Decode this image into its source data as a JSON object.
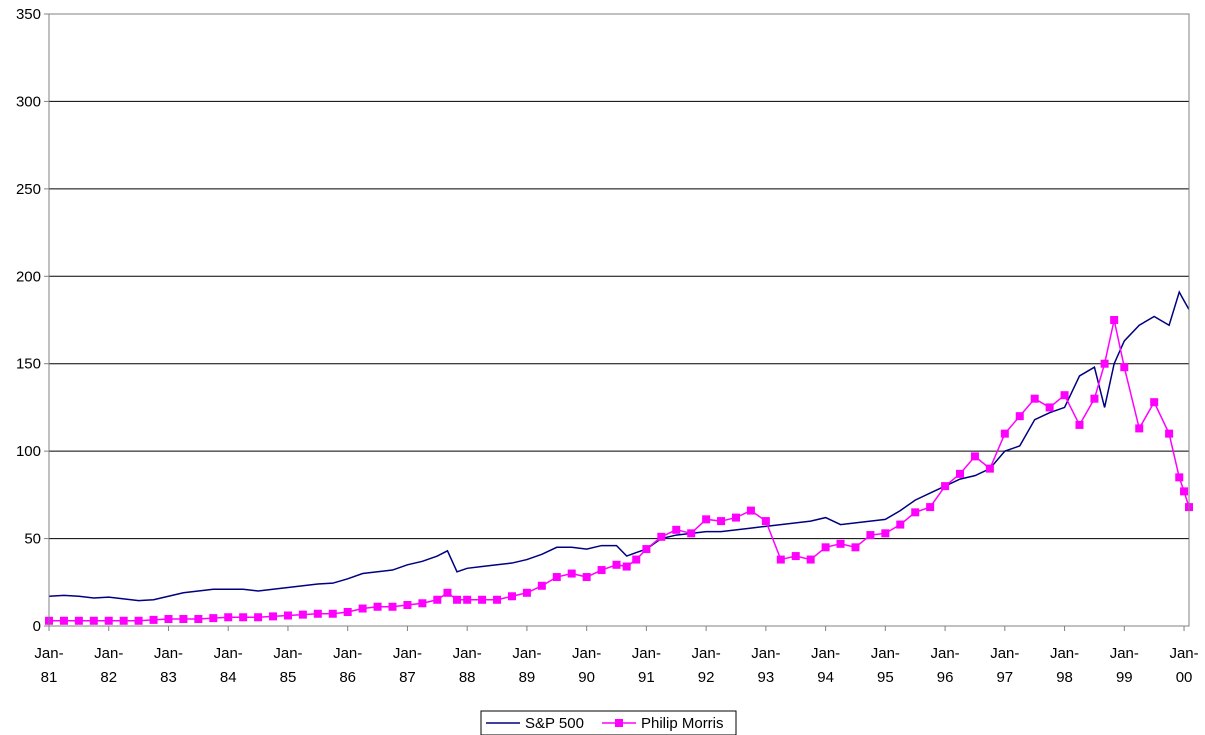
{
  "chart_data": {
    "type": "line",
    "title": "",
    "xlabel": "",
    "ylabel": "",
    "ylim": [
      0,
      350
    ],
    "yticks": [
      0,
      50,
      100,
      150,
      200,
      250,
      300,
      350
    ],
    "xlim": [
      1981.0,
      2000.083
    ],
    "x_tick_labels": [
      {
        "x": 1981,
        "line1": "Jan-",
        "line2": "81"
      },
      {
        "x": 1982,
        "line1": "Jan-",
        "line2": "82"
      },
      {
        "x": 1983,
        "line1": "Jan-",
        "line2": "83"
      },
      {
        "x": 1984,
        "line1": "Jan-",
        "line2": "84"
      },
      {
        "x": 1985,
        "line1": "Jan-",
        "line2": "85"
      },
      {
        "x": 1986,
        "line1": "Jan-",
        "line2": "86"
      },
      {
        "x": 1987,
        "line1": "Jan-",
        "line2": "87"
      },
      {
        "x": 1988,
        "line1": "Jan-",
        "line2": "88"
      },
      {
        "x": 1989,
        "line1": "Jan-",
        "line2": "89"
      },
      {
        "x": 1990,
        "line1": "Jan-",
        "line2": "90"
      },
      {
        "x": 1991,
        "line1": "Jan-",
        "line2": "91"
      },
      {
        "x": 1992,
        "line1": "Jan-",
        "line2": "92"
      },
      {
        "x": 1993,
        "line1": "Jan-",
        "line2": "93"
      },
      {
        "x": 1994,
        "line1": "Jan-",
        "line2": "94"
      },
      {
        "x": 1995,
        "line1": "Jan-",
        "line2": "95"
      },
      {
        "x": 1996,
        "line1": "Jan-",
        "line2": "96"
      },
      {
        "x": 1997,
        "line1": "Jan-",
        "line2": "97"
      },
      {
        "x": 1998,
        "line1": "Jan-",
        "line2": "98"
      },
      {
        "x": 1999,
        "line1": "Jan-",
        "line2": "99"
      },
      {
        "x": 2000,
        "line1": "Jan-",
        "line2": "00"
      }
    ],
    "grid": "horizontal",
    "legend_position": "bottom",
    "series": [
      {
        "name": "S&P 500",
        "color": "#000080",
        "marker": "none",
        "points": [
          [
            1981.0,
            17
          ],
          [
            1981.25,
            17.5
          ],
          [
            1981.5,
            17
          ],
          [
            1981.75,
            16
          ],
          [
            1982.0,
            16.5
          ],
          [
            1982.25,
            15.5
          ],
          [
            1982.5,
            14.5
          ],
          [
            1982.75,
            15
          ],
          [
            1983.0,
            17
          ],
          [
            1983.25,
            19
          ],
          [
            1983.5,
            20
          ],
          [
            1983.75,
            21
          ],
          [
            1984.0,
            21
          ],
          [
            1984.25,
            21
          ],
          [
            1984.5,
            20
          ],
          [
            1984.75,
            21
          ],
          [
            1985.0,
            22
          ],
          [
            1985.25,
            23
          ],
          [
            1985.5,
            24
          ],
          [
            1985.75,
            24.5
          ],
          [
            1986.0,
            27
          ],
          [
            1986.25,
            30
          ],
          [
            1986.5,
            31
          ],
          [
            1986.75,
            32
          ],
          [
            1987.0,
            35
          ],
          [
            1987.25,
            37
          ],
          [
            1987.5,
            40
          ],
          [
            1987.67,
            43
          ],
          [
            1987.83,
            31
          ],
          [
            1988.0,
            33
          ],
          [
            1988.25,
            34
          ],
          [
            1988.5,
            35
          ],
          [
            1988.75,
            36
          ],
          [
            1989.0,
            38
          ],
          [
            1989.25,
            41
          ],
          [
            1989.5,
            45
          ],
          [
            1989.75,
            45
          ],
          [
            1990.0,
            44
          ],
          [
            1990.25,
            46
          ],
          [
            1990.5,
            46
          ],
          [
            1990.67,
            40
          ],
          [
            1990.83,
            42
          ],
          [
            1991.0,
            44
          ],
          [
            1991.25,
            50
          ],
          [
            1991.5,
            52
          ],
          [
            1991.75,
            53
          ],
          [
            1992.0,
            54
          ],
          [
            1992.25,
            54
          ],
          [
            1992.5,
            55
          ],
          [
            1992.75,
            56
          ],
          [
            1993.0,
            57
          ],
          [
            1993.25,
            58
          ],
          [
            1993.5,
            59
          ],
          [
            1993.75,
            60
          ],
          [
            1994.0,
            62
          ],
          [
            1994.25,
            58
          ],
          [
            1994.5,
            59
          ],
          [
            1994.75,
            60
          ],
          [
            1995.0,
            61
          ],
          [
            1995.25,
            66
          ],
          [
            1995.5,
            72
          ],
          [
            1995.75,
            76
          ],
          [
            1996.0,
            80
          ],
          [
            1996.25,
            84
          ],
          [
            1996.5,
            86
          ],
          [
            1996.75,
            90
          ],
          [
            1997.0,
            100
          ],
          [
            1997.25,
            103
          ],
          [
            1997.5,
            118
          ],
          [
            1997.75,
            122
          ],
          [
            1998.0,
            125
          ],
          [
            1998.25,
            143
          ],
          [
            1998.5,
            148
          ],
          [
            1998.67,
            125
          ],
          [
            1998.83,
            150
          ],
          [
            1999.0,
            163
          ],
          [
            1999.25,
            172
          ],
          [
            1999.5,
            177
          ],
          [
            1999.75,
            172
          ],
          [
            1999.92,
            191
          ],
          [
            2000.0,
            186
          ],
          [
            2000.083,
            181
          ]
        ]
      },
      {
        "name": "Philip Morris",
        "color": "#FF00FF",
        "marker": "square",
        "points": [
          [
            1981.0,
            3
          ],
          [
            1981.25,
            3
          ],
          [
            1981.5,
            3
          ],
          [
            1981.75,
            3
          ],
          [
            1982.0,
            3
          ],
          [
            1982.25,
            3
          ],
          [
            1982.5,
            3
          ],
          [
            1982.75,
            3.5
          ],
          [
            1983.0,
            4
          ],
          [
            1983.25,
            4
          ],
          [
            1983.5,
            4
          ],
          [
            1983.75,
            4.5
          ],
          [
            1984.0,
            5
          ],
          [
            1984.25,
            5
          ],
          [
            1984.5,
            5
          ],
          [
            1984.75,
            5.5
          ],
          [
            1985.0,
            6
          ],
          [
            1985.25,
            6.5
          ],
          [
            1985.5,
            7
          ],
          [
            1985.75,
            7
          ],
          [
            1986.0,
            8
          ],
          [
            1986.25,
            10
          ],
          [
            1986.5,
            11
          ],
          [
            1986.75,
            11
          ],
          [
            1987.0,
            12
          ],
          [
            1987.25,
            13
          ],
          [
            1987.5,
            15
          ],
          [
            1987.67,
            19
          ],
          [
            1987.83,
            15
          ],
          [
            1988.0,
            15
          ],
          [
            1988.25,
            15
          ],
          [
            1988.5,
            15
          ],
          [
            1988.75,
            17
          ],
          [
            1989.0,
            19
          ],
          [
            1989.25,
            23
          ],
          [
            1989.5,
            28
          ],
          [
            1989.75,
            30
          ],
          [
            1990.0,
            28
          ],
          [
            1990.25,
            32
          ],
          [
            1990.5,
            35
          ],
          [
            1990.67,
            34
          ],
          [
            1990.83,
            38
          ],
          [
            1991.0,
            44
          ],
          [
            1991.25,
            51
          ],
          [
            1991.5,
            55
          ],
          [
            1991.75,
            53
          ],
          [
            1992.0,
            61
          ],
          [
            1992.25,
            60
          ],
          [
            1992.5,
            62
          ],
          [
            1992.75,
            66
          ],
          [
            1993.0,
            60
          ],
          [
            1993.25,
            38
          ],
          [
            1993.5,
            40
          ],
          [
            1993.75,
            38
          ],
          [
            1994.0,
            45
          ],
          [
            1994.25,
            47
          ],
          [
            1994.5,
            45
          ],
          [
            1994.75,
            52
          ],
          [
            1995.0,
            53
          ],
          [
            1995.25,
            58
          ],
          [
            1995.5,
            65
          ],
          [
            1995.75,
            68
          ],
          [
            1996.0,
            80
          ],
          [
            1996.25,
            87
          ],
          [
            1996.5,
            97
          ],
          [
            1996.75,
            90
          ],
          [
            1997.0,
            110
          ],
          [
            1997.25,
            120
          ],
          [
            1997.5,
            130
          ],
          [
            1997.75,
            125
          ],
          [
            1998.0,
            132
          ],
          [
            1998.25,
            115
          ],
          [
            1998.5,
            130
          ],
          [
            1998.67,
            150
          ],
          [
            1998.83,
            175
          ],
          [
            1999.0,
            148
          ],
          [
            1999.25,
            113
          ],
          [
            1999.5,
            128
          ],
          [
            1999.75,
            110
          ],
          [
            1999.92,
            85
          ],
          [
            2000.0,
            77
          ],
          [
            2000.083,
            68
          ]
        ]
      }
    ]
  }
}
